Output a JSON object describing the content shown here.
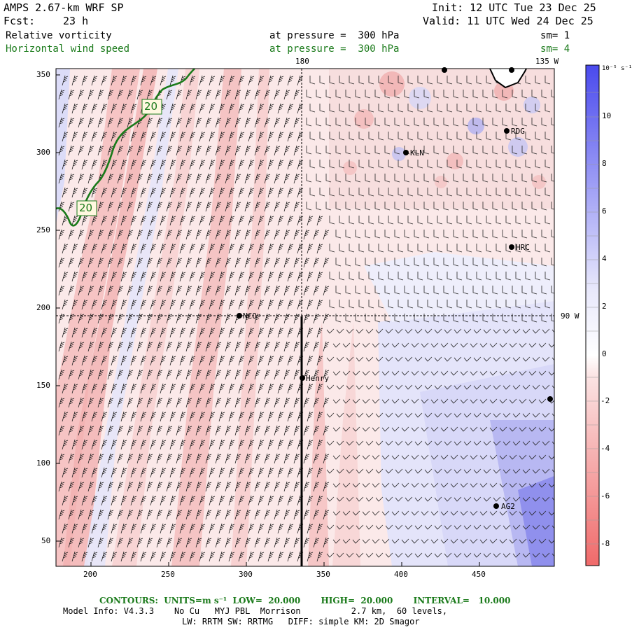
{
  "header": {
    "model": "AMPS 2.67-km WRF SP",
    "init": "Init: 12 UTC Tue 23 Dec 25",
    "fcst_label": "Fcst:",
    "fcst_value": "23 h",
    "valid": "Valid: 11 UTC Wed 24 Dec 25",
    "field1": "Relative vorticity",
    "field1_level": "at pressure =  300 hPa",
    "field1_sm": "sm= 1",
    "field2": "Horizontal wind speed",
    "field2_level": "at pressure =  300 hPa",
    "field2_sm": "sm= 4"
  },
  "map": {
    "lon_labels": [
      "180",
      "135 W",
      "90 W"
    ],
    "stations": [
      "NCO",
      "Henry",
      "KLN",
      "RDG",
      "HRC",
      "AG2"
    ],
    "contour_labels": [
      "20",
      "20"
    ],
    "x_ticks": [
      "200",
      "250",
      "300",
      "350",
      "400",
      "450"
    ],
    "y_ticks": [
      "350",
      "300",
      "250",
      "200",
      "150",
      "100",
      "50"
    ]
  },
  "colorbar": {
    "unit": "10⁻⁵ s⁻¹",
    "ticks": [
      "10",
      "8",
      "6",
      "4",
      "2",
      "0",
      "-2",
      "-4",
      "-6",
      "-8"
    ],
    "colors": {
      "max_blue": "#4a4aee",
      "min_red": "#f06a6a",
      "zero": "#ffffff"
    }
  },
  "footer": {
    "contours": "CONTOURS:  UNITS=m s⁻¹  LOW=  20.000       HIGH=  20.000       INTERVAL=   10.000",
    "model_info": "Model Info: V4.3.3    No Cu   MYJ PBL  Morrison          2.7 km,  60 levels,",
    "physics": "LW: RRTM SW: RRTMG   DIFF: simple KM: 2D Smagor"
  }
}
